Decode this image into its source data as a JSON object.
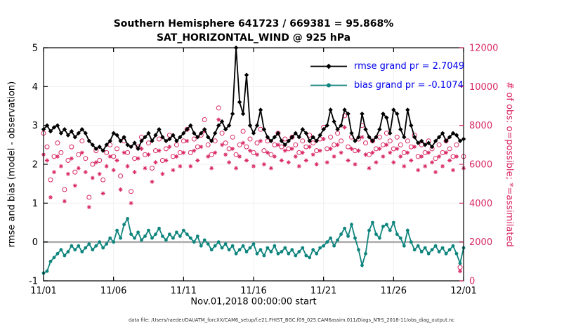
{
  "legend": {
    "rmse_label": "rmse grand pr = 2.7049",
    "bias_label": "bias grand pr = -0.1074",
    "text_color": "#0000ee"
  },
  "footer": {
    "data_file": "data file: /Users/raeder/DAI/ATM_forcXX/CAM6_setup/f.e21.FHIST_BGC.f09_025.CAM6assim.011/Diags_NTrS_2018-11/obs_diag_output.nc"
  },
  "colors": {
    "rmse": "#000000",
    "bias": "#0f857e",
    "obs": "#d92966",
    "zero_line": "#b5b5b5",
    "grid": "#f0f0f0",
    "axes": "#000000"
  },
  "chart_data": {
    "type": "line",
    "title": "Southern Hemisphere 641723 / 669381 = 95.868%",
    "subtitle": "SAT_HORIZONTAL_WIND @ 925 hPa",
    "xlabel": "Nov.01,2018 00:00:00 start",
    "ylabel_left": "rmse and bias (model - observation)",
    "ylabel_right": "# of obs: o=possible; *=assimilated",
    "stats": {
      "region": "Southern Hemisphere",
      "used_total": 641723,
      "possible_total": 669381,
      "percent_assimilated": 95.868,
      "rmse_grand_pr": 2.7049,
      "bias_grand_pr": -0.1074,
      "level": "925 hPa",
      "variable": "SAT_HORIZONTAL_WIND"
    },
    "x_range": [
      0,
      30
    ],
    "x_step_days": 0.25,
    "xticks": [
      0,
      5,
      10,
      15,
      20,
      25,
      30
    ],
    "xtick_labels": [
      "11/01",
      "11/06",
      "11/11",
      "11/16",
      "11/21",
      "11/26",
      "12/01"
    ],
    "ylim_left": [
      -1,
      5
    ],
    "yticks_left": [
      -1,
      0,
      1,
      2,
      3,
      4,
      5
    ],
    "ylim_right": [
      0,
      12000
    ],
    "yticks_right": [
      0,
      2000,
      4000,
      6000,
      8000,
      10000,
      12000
    ],
    "grid": "subtle",
    "legend_position": "upper-right-inside",
    "series": [
      {
        "name": "rmse",
        "plot": "line",
        "marker": "diamond",
        "axis": "left",
        "values": [
          2.9,
          3.0,
          2.85,
          2.95,
          3.0,
          2.8,
          2.9,
          2.75,
          2.85,
          2.7,
          2.8,
          2.9,
          2.8,
          2.6,
          2.5,
          2.4,
          2.45,
          2.35,
          2.5,
          2.6,
          2.8,
          2.75,
          2.6,
          2.7,
          2.5,
          2.45,
          2.55,
          2.4,
          2.6,
          2.7,
          2.8,
          2.6,
          2.75,
          2.9,
          2.7,
          2.6,
          2.65,
          2.75,
          2.6,
          2.7,
          2.8,
          2.9,
          3.0,
          2.8,
          2.7,
          2.8,
          2.9,
          2.7,
          2.6,
          2.8,
          3.0,
          3.1,
          2.9,
          3.0,
          3.3,
          5.0,
          3.6,
          3.3,
          4.3,
          3.0,
          2.8,
          3.0,
          3.4,
          2.9,
          2.7,
          2.6,
          2.7,
          2.8,
          2.6,
          2.5,
          2.6,
          2.7,
          2.8,
          2.7,
          2.9,
          2.8,
          2.6,
          2.7,
          2.6,
          2.75,
          2.9,
          3.0,
          3.4,
          3.1,
          2.9,
          3.0,
          3.4,
          3.3,
          2.8,
          2.6,
          2.7,
          3.3,
          2.9,
          2.7,
          2.6,
          2.7,
          2.9,
          3.3,
          3.2,
          2.8,
          3.4,
          3.3,
          2.9,
          2.7,
          3.4,
          3.0,
          2.7,
          2.55,
          2.6,
          2.5,
          2.55,
          2.45,
          2.6,
          2.7,
          2.8,
          2.6,
          2.7,
          2.8,
          2.75,
          2.6,
          2.65
        ]
      },
      {
        "name": "bias",
        "plot": "line",
        "marker": "circle",
        "axis": "left",
        "values": [
          -0.8,
          -0.75,
          -0.5,
          -0.4,
          -0.3,
          -0.2,
          -0.35,
          -0.25,
          -0.1,
          -0.2,
          -0.1,
          -0.25,
          -0.15,
          -0.05,
          -0.2,
          -0.1,
          0.0,
          -0.15,
          -0.05,
          0.1,
          0.0,
          0.3,
          0.1,
          0.45,
          0.6,
          0.2,
          0.1,
          0.25,
          0.05,
          0.15,
          0.3,
          0.1,
          0.2,
          0.35,
          0.15,
          0.05,
          0.2,
          0.1,
          0.25,
          0.15,
          0.3,
          0.2,
          0.1,
          0.0,
          0.15,
          -0.1,
          0.05,
          -0.05,
          -0.2,
          -0.1,
          0.0,
          -0.15,
          -0.05,
          -0.2,
          -0.1,
          -0.3,
          -0.2,
          -0.1,
          -0.25,
          -0.15,
          -0.05,
          -0.3,
          -0.2,
          -0.35,
          -0.15,
          -0.25,
          -0.1,
          -0.3,
          -0.25,
          -0.15,
          -0.3,
          -0.2,
          -0.35,
          -0.25,
          -0.15,
          -0.35,
          -0.4,
          -0.2,
          -0.3,
          -0.15,
          -0.1,
          0.0,
          0.1,
          -0.1,
          0.05,
          0.2,
          0.35,
          0.15,
          0.45,
          0.1,
          -0.2,
          -0.6,
          -0.3,
          0.3,
          0.5,
          0.2,
          0.1,
          0.4,
          0.45,
          0.3,
          0.5,
          0.2,
          0.1,
          -0.1,
          0.3,
          0.0,
          -0.2,
          -0.1,
          -0.25,
          -0.15,
          -0.3,
          -0.2,
          -0.1,
          -0.25,
          -0.15,
          -0.3,
          -0.2,
          -0.1,
          -0.3,
          -0.55,
          -0.15
        ]
      },
      {
        "name": "possible",
        "plot": "scatter",
        "marker": "o",
        "axis": "right",
        "values": [
          7600,
          6900,
          5200,
          6400,
          7100,
          6600,
          4700,
          6200,
          6900,
          5600,
          6500,
          7200,
          6300,
          4300,
          6000,
          6700,
          6200,
          5200,
          6600,
          7000,
          6400,
          6800,
          5400,
          7200,
          6600,
          4600,
          6300,
          6900,
          7400,
          6500,
          7100,
          5800,
          6700,
          7300,
          6200,
          6800,
          7500,
          6400,
          7000,
          6600,
          7200,
          7800,
          6600,
          7300,
          6900,
          7500,
          8300,
          7000,
          6500,
          7200,
          8900,
          7600,
          7100,
          6800,
          7400,
          6500,
          7000,
          7700,
          6900,
          7300,
          6600,
          7100,
          7800,
          6700,
          7200,
          6500,
          7000,
          7600,
          6900,
          7300,
          6800,
          7400,
          7000,
          6600,
          7200,
          6900,
          7500,
          7100,
          6700,
          7300,
          7900,
          6800,
          7400,
          7000,
          7600,
          7200,
          8500,
          6900,
          7400,
          6700,
          7300,
          8000,
          7100,
          6500,
          7200,
          6800,
          7400,
          7000,
          7600,
          7200,
          6800,
          7400,
          7000,
          6600,
          7200,
          6900,
          7500,
          6400,
          7000,
          6600,
          7200,
          6800,
          6300,
          7000,
          6600,
          7200,
          6800,
          6400,
          7000,
          700,
          6400
        ]
      },
      {
        "name": "assimilated",
        "plot": "scatter",
        "marker": "*",
        "axis": "right",
        "values": [
          6500,
          6200,
          4300,
          5600,
          6400,
          5900,
          4100,
          5500,
          6300,
          4900,
          5800,
          6600,
          5600,
          3800,
          5300,
          6100,
          5500,
          4500,
          5900,
          6400,
          5700,
          6200,
          4700,
          6600,
          5900,
          4000,
          5600,
          6300,
          6800,
          5800,
          6500,
          5100,
          6100,
          6700,
          5500,
          6200,
          6900,
          5700,
          6400,
          5900,
          6600,
          7200,
          5900,
          6700,
          6200,
          6900,
          7700,
          6400,
          5800,
          6600,
          8300,
          7000,
          6500,
          6100,
          6800,
          5800,
          6400,
          7100,
          6200,
          6700,
          5900,
          6500,
          7200,
          6000,
          6600,
          5800,
          6400,
          7000,
          6200,
          6700,
          6100,
          6800,
          6400,
          5900,
          6600,
          6200,
          6900,
          6500,
          6000,
          6700,
          7300,
          6100,
          6800,
          6400,
          7000,
          6600,
          7900,
          6200,
          6800,
          6000,
          6700,
          7400,
          6500,
          5800,
          6600,
          6100,
          6800,
          6400,
          7000,
          6600,
          6100,
          6800,
          6400,
          5900,
          6600,
          6200,
          6900,
          5700,
          6400,
          5900,
          6600,
          6100,
          5600,
          6400,
          5900,
          6600,
          6200,
          5700,
          6400,
          500,
          5800
        ]
      }
    ]
  }
}
